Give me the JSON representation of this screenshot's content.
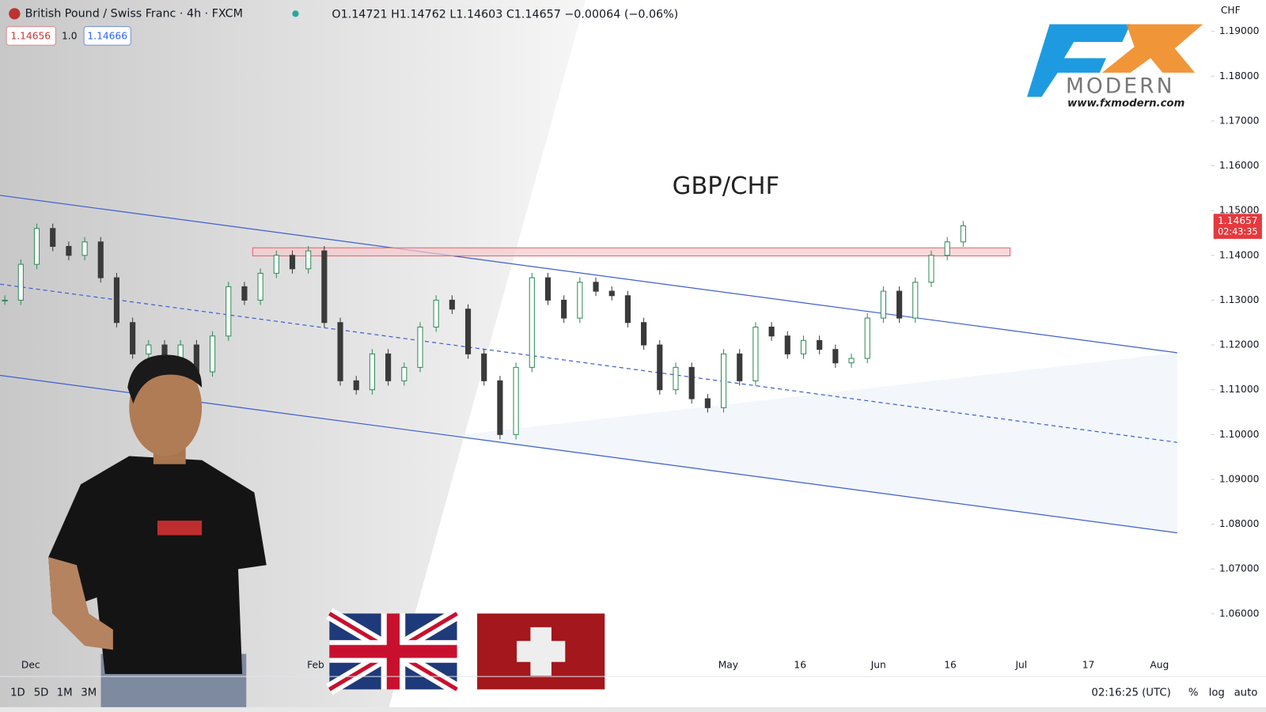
{
  "header": {
    "symbol": "British Pound / Swiss Franc · 4h · FXCM",
    "ohlc": "O1.14721 H1.14762 L1.14603 C1.14657 −0.00064 (−0.06%)",
    "sell_price": "1.14656",
    "quantity": "1.0",
    "buy_price": "1.14666"
  },
  "logo": {
    "mark": "FX",
    "name": "MODERN",
    "url": "www.fxmodern.com"
  },
  "chart": {
    "title": "GBP/CHF",
    "currency": "CHF",
    "ylim": [
      1.046,
      1.197
    ],
    "yticks": [
      {
        "value": 1.19,
        "label": "1.19000"
      },
      {
        "value": 1.18,
        "label": "1.18000"
      },
      {
        "value": 1.17,
        "label": "1.17000"
      },
      {
        "value": 1.16,
        "label": "1.16000"
      },
      {
        "value": 1.15,
        "label": "1.15000"
      },
      {
        "value": 1.14,
        "label": "1.14000"
      },
      {
        "value": 1.13,
        "label": "1.13000"
      },
      {
        "value": 1.12,
        "label": "1.12000"
      },
      {
        "value": 1.11,
        "label": "1.11000"
      },
      {
        "value": 1.1,
        "label": "1.10000"
      },
      {
        "value": 1.09,
        "label": "1.09000"
      },
      {
        "value": 1.08,
        "label": "1.08000"
      },
      {
        "value": 1.07,
        "label": "1.07000"
      },
      {
        "value": 1.06,
        "label": "1.06000"
      }
    ],
    "current_price": {
      "value": 1.14657,
      "label": "1.14657",
      "countdown": "02:43:35"
    },
    "x_labels": [
      "Dec",
      "Feb",
      "May",
      "16",
      "Jun",
      "16",
      "Jul",
      "17",
      "Aug"
    ],
    "up_color": "#2e8b57",
    "down_color": "#3a3a3a",
    "closes": [
      1.13,
      1.138,
      1.146,
      1.142,
      1.14,
      1.143,
      1.135,
      1.125,
      1.118,
      1.12,
      1.116,
      1.12,
      1.114,
      1.122,
      1.133,
      1.13,
      1.136,
      1.14,
      1.137,
      1.141,
      1.125,
      1.112,
      1.11,
      1.118,
      1.112,
      1.115,
      1.124,
      1.13,
      1.128,
      1.118,
      1.112,
      1.1,
      1.115,
      1.135,
      1.13,
      1.126,
      1.134,
      1.132,
      1.131,
      1.125,
      1.12,
      1.11,
      1.115,
      1.108,
      1.106,
      1.118,
      1.112,
      1.124,
      1.122,
      1.118,
      1.121,
      1.119,
      1.116,
      1.117,
      1.126,
      1.132,
      1.126,
      1.134,
      1.14,
      1.143,
      1.1466
    ]
  },
  "footer": {
    "timeframes": [
      "1D",
      "5D",
      "1M",
      "3M"
    ],
    "clock": "02:16:25 (UTC)",
    "toggles": [
      "%",
      "log",
      "auto"
    ]
  }
}
